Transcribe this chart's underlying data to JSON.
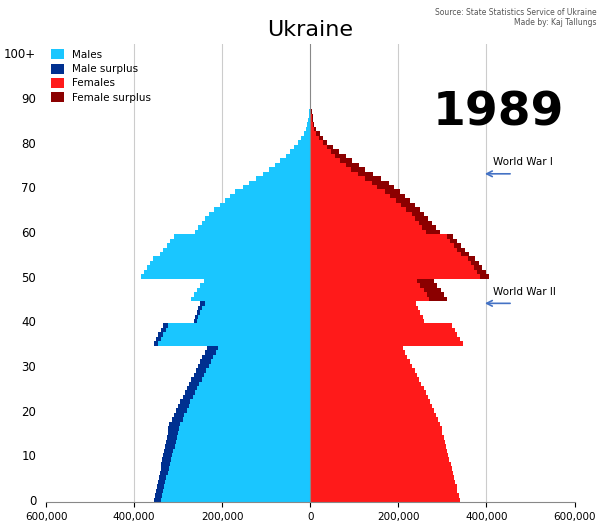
{
  "title": "Ukraine",
  "year": "1989",
  "source": "Source: State Statistics Service of Ukraine\nMade by: Kaj Tallungs",
  "ww1_label": "World War I",
  "ww2_label": "World War II",
  "ww1_age": 73,
  "ww2_age": 44,
  "colors": {
    "male": "#1AC6FF",
    "male_surplus": "#003090",
    "female": "#FF1A1A",
    "female_surplus": "#8B0000"
  },
  "ages": [
    0,
    1,
    2,
    3,
    4,
    5,
    6,
    7,
    8,
    9,
    10,
    11,
    12,
    13,
    14,
    15,
    16,
    17,
    18,
    19,
    20,
    21,
    22,
    23,
    24,
    25,
    26,
    27,
    28,
    29,
    30,
    31,
    32,
    33,
    34,
    35,
    36,
    37,
    38,
    39,
    40,
    41,
    42,
    43,
    44,
    45,
    46,
    47,
    48,
    49,
    50,
    51,
    52,
    53,
    54,
    55,
    56,
    57,
    58,
    59,
    60,
    61,
    62,
    63,
    64,
    65,
    66,
    67,
    68,
    69,
    70,
    71,
    72,
    73,
    74,
    75,
    76,
    77,
    78,
    79,
    80,
    81,
    82,
    83,
    84,
    85,
    86,
    87,
    88,
    89,
    90,
    91,
    92,
    93,
    94,
    95,
    96,
    97,
    98,
    99,
    100
  ],
  "males": [
    355000,
    352000,
    350000,
    348000,
    346000,
    344000,
    342000,
    340000,
    338000,
    336000,
    334000,
    332000,
    330000,
    328000,
    326000,
    324000,
    322000,
    320000,
    315000,
    310000,
    305000,
    300000,
    295000,
    290000,
    285000,
    280000,
    275000,
    270000,
    265000,
    260000,
    255000,
    250000,
    245000,
    240000,
    235000,
    355000,
    350000,
    345000,
    340000,
    335000,
    265000,
    262000,
    258000,
    254000,
    250000,
    270000,
    265000,
    258000,
    250000,
    242000,
    385000,
    378000,
    371000,
    364000,
    357000,
    342000,
    334000,
    326000,
    318000,
    310000,
    262000,
    254000,
    246000,
    238000,
    230000,
    218000,
    206000,
    194000,
    182000,
    170000,
    152000,
    140000,
    124000,
    108000,
    93000,
    80000,
    68000,
    56000,
    46000,
    37000,
    28000,
    20000,
    14000,
    9500,
    6500,
    4200,
    2800,
    1900,
    1300,
    850,
    550,
    340,
    200,
    120,
    70,
    40,
    20,
    10,
    5,
    2,
    1
  ],
  "females": [
    339000,
    337000,
    334000,
    332000,
    329000,
    327000,
    324000,
    321000,
    319000,
    316000,
    313000,
    311000,
    308000,
    305000,
    303000,
    300000,
    298000,
    295000,
    290000,
    286000,
    281000,
    276000,
    272000,
    267000,
    262000,
    257000,
    252000,
    247000,
    242000,
    237000,
    231000,
    226000,
    220000,
    215000,
    210000,
    346000,
    340000,
    334000,
    328000,
    322000,
    258000,
    255000,
    250000,
    245000,
    240000,
    310000,
    303000,
    296000,
    288000,
    280000,
    406000,
    398000,
    390000,
    382000,
    374000,
    360000,
    351000,
    342000,
    333000,
    324000,
    294000,
    285000,
    276000,
    267000,
    258000,
    248000,
    237000,
    226000,
    215000,
    204000,
    190000,
    178000,
    161000,
    143000,
    125000,
    110000,
    95000,
    80000,
    65000,
    52000,
    39000,
    29000,
    21000,
    14000,
    9500,
    6800,
    5000,
    3500,
    2400,
    1600,
    1000,
    640,
    380,
    230,
    135,
    78,
    44,
    23,
    11,
    5,
    2
  ],
  "xlim": 600000,
  "xticks": [
    -600000,
    -400000,
    -200000,
    0,
    200000,
    400000,
    600000
  ],
  "xtick_labels": [
    "600,000",
    "400,000",
    "200,000",
    "0",
    "200,000",
    "400,000",
    "600,000"
  ]
}
